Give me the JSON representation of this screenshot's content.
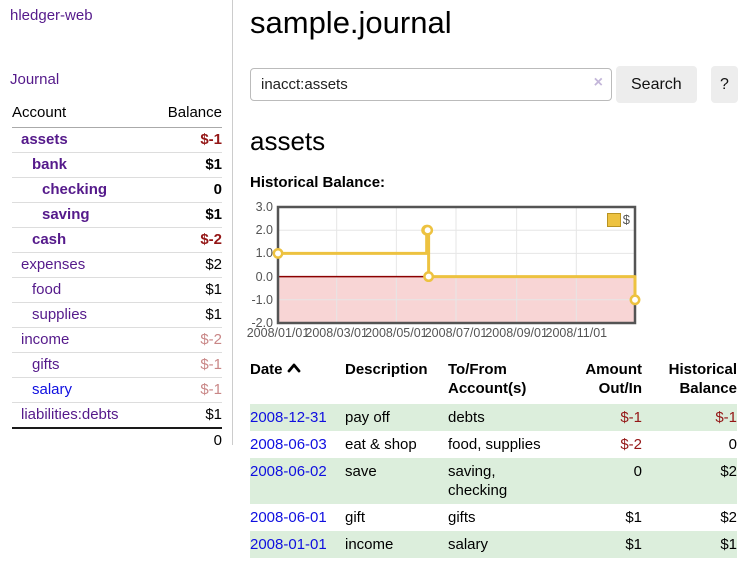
{
  "colors": {
    "link-purple": "#551a8b",
    "link-blue": "#0f0fe0",
    "negative": "#941616",
    "negative-muted": "#c98787",
    "row-stripe": "#dceedc",
    "button-bg": "#ededed",
    "chart-gold": "#edc240",
    "tick-text": "#545454",
    "clear-x": "#c3b6d9"
  },
  "app": {
    "title": "hledger-web",
    "journal_nav": "Journal"
  },
  "sidebar": {
    "headers": {
      "account": "Account",
      "balance": "Balance"
    },
    "accounts": [
      {
        "label": "assets",
        "balance": "$-1"
      },
      {
        "label": "bank",
        "balance": "$1"
      },
      {
        "label": "checking",
        "balance": "0"
      },
      {
        "label": "saving",
        "balance": "$1"
      },
      {
        "label": "cash",
        "balance": "$-2"
      },
      {
        "label": "expenses",
        "balance": "$2"
      },
      {
        "label": "food",
        "balance": "$1"
      },
      {
        "label": "supplies",
        "balance": "$1"
      },
      {
        "label": "income",
        "balance": "$-2"
      },
      {
        "label": "gifts",
        "balance": "$-1"
      },
      {
        "label": "salary",
        "balance": "$-1"
      },
      {
        "label": "liabilities:debts",
        "balance": "$1"
      }
    ],
    "total": "0"
  },
  "main": {
    "title": "sample.journal",
    "search": {
      "value": "inacct:assets",
      "clear_icon": "×",
      "search_button": "Search",
      "help_button": "?"
    },
    "heading": "assets",
    "chart_label": "Historical Balance:"
  },
  "chart_data": {
    "type": "line",
    "step": true,
    "title": "Historical Balance",
    "x_range": [
      "2008-01-01",
      "2008-12-31"
    ],
    "ylim": [
      -2,
      3
    ],
    "yticks": [
      {
        "v": 3,
        "label": "3.0"
      },
      {
        "v": 2,
        "label": "2.0"
      },
      {
        "v": 1,
        "label": "1.0"
      },
      {
        "v": 0,
        "label": "0.0"
      },
      {
        "v": -1,
        "label": "-1.0"
      },
      {
        "v": -2,
        "label": "-2.0"
      }
    ],
    "xticks": [
      {
        "date": "2008-01-01",
        "label": "2008/01/01"
      },
      {
        "date": "2008-03-01",
        "label": "2008/03/01"
      },
      {
        "date": "2008-05-01",
        "label": "2008/05/01"
      },
      {
        "date": "2008-07-01",
        "label": "2008/07/01"
      },
      {
        "date": "2008-09-01",
        "label": "2008/09/01"
      },
      {
        "date": "2008-11-01",
        "label": "2008/11/01"
      }
    ],
    "series": [
      {
        "name": "$",
        "color": "#edc240",
        "points": [
          [
            "2008-01-01",
            1
          ],
          [
            "2008-06-01",
            2
          ],
          [
            "2008-06-02",
            2
          ],
          [
            "2008-06-03",
            0
          ],
          [
            "2008-12-31",
            -1
          ]
        ]
      }
    ],
    "legend_position": "top-right",
    "grid": true,
    "zero_line_color": "#8b0000",
    "negative_region_color": "#f8d5d5"
  },
  "register": {
    "headers": {
      "date": "Date",
      "description": "Description",
      "accounts": "To/From Account(s)",
      "amount": "Amount Out/In",
      "balance": "Historical Balance"
    },
    "rows": [
      {
        "date": "2008-12-31",
        "description": "pay off",
        "accounts": "debts",
        "amount": "$-1",
        "balance": "$-1"
      },
      {
        "date": "2008-06-03",
        "description": "eat & shop",
        "accounts": "food, supplies",
        "amount": "$-2",
        "balance": "0"
      },
      {
        "date": "2008-06-02",
        "description": "save",
        "accounts": "saving, checking",
        "amount": "0",
        "balance": "$2"
      },
      {
        "date": "2008-06-01",
        "description": "gift",
        "accounts": "gifts",
        "amount": "$1",
        "balance": "$2"
      },
      {
        "date": "2008-01-01",
        "description": "income",
        "accounts": "salary",
        "amount": "$1",
        "balance": "$1"
      }
    ]
  }
}
